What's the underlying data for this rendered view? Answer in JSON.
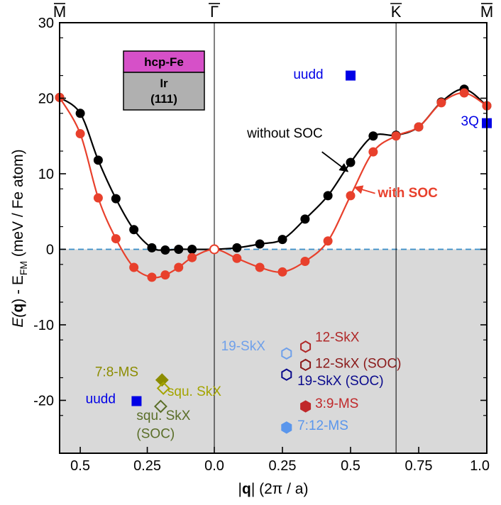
{
  "chart_data": {
    "type": "scatter",
    "ylabel_parts": [
      "E(",
      "q",
      ") - E",
      "FM",
      " (meV / Fe atom)"
    ],
    "xlabel_parts": [
      "|",
      "q",
      "| (2π / a)"
    ],
    "ylim": [
      -27,
      30
    ],
    "yticks": [
      -20,
      -10,
      0,
      10,
      20,
      30
    ],
    "ytick_labels": [
      "-20",
      "-10",
      "0",
      "10",
      "20",
      "30"
    ],
    "x_left_ticks": [
      0.5,
      0.25,
      0.0
    ],
    "x_left_tick_labels": [
      "0.5",
      "0.25",
      "0.0"
    ],
    "x_right_ticks": [
      0.25,
      0.5,
      0.75,
      1.0
    ],
    "x_right_tick_labels": [
      "0.25",
      "0.5",
      "0.75",
      "1.0"
    ],
    "x_left_range": [
      0.577,
      0
    ],
    "x_right_range": [
      0,
      1.0
    ],
    "symmetry_points": [
      {
        "label": "M",
        "side": "left",
        "x": 0.577
      },
      {
        "label": "Γ",
        "side": "right",
        "x": 0
      },
      {
        "label": "K",
        "side": "right",
        "x": 0.667
      },
      {
        "label": "M",
        "side": "right",
        "x": 1.0
      }
    ],
    "series": [
      {
        "name": "without SOC",
        "color": "#000000",
        "left": {
          "x": [
            0.577,
            0.5,
            0.433,
            0.367,
            0.3,
            0.233,
            0.183,
            0.133,
            0.083,
            0.0
          ],
          "y": [
            20.1,
            18.0,
            11.8,
            6.7,
            2.6,
            0.2,
            -0.1,
            0.0,
            0.0,
            0.0
          ]
        },
        "right": {
          "x": [
            0.0,
            0.083,
            0.167,
            0.25,
            0.333,
            0.417,
            0.5,
            0.583,
            0.667,
            0.75,
            0.833,
            0.917,
            1.0
          ],
          "y": [
            0.0,
            0.2,
            0.7,
            1.3,
            4.0,
            7.1,
            11.5,
            15.0,
            15.1,
            16.2,
            19.5,
            21.2,
            19.0
          ]
        }
      },
      {
        "name": "with SOC",
        "color": "#e8402c",
        "left": {
          "x": [
            0.577,
            0.5,
            0.433,
            0.367,
            0.3,
            0.233,
            0.183,
            0.133,
            0.083,
            0.0
          ],
          "y": [
            20.1,
            15.3,
            6.8,
            1.4,
            -2.4,
            -3.7,
            -3.4,
            -2.4,
            -1.1,
            0.0
          ]
        },
        "right": {
          "x": [
            0.0,
            0.083,
            0.167,
            0.25,
            0.333,
            0.417,
            0.5,
            0.583,
            0.667,
            0.75,
            0.833,
            0.917,
            1.0
          ],
          "y": [
            0.0,
            -1.2,
            -2.4,
            -3.0,
            -1.6,
            1.1,
            7.1,
            12.9,
            15.0,
            16.2,
            19.4,
            20.7,
            19.0
          ]
        }
      }
    ],
    "annotations": [
      {
        "id": "without-soc",
        "text": "without SOC",
        "color": "#000000",
        "bold": false,
        "side": "right",
        "x": 0.12,
        "y": 14.8
      },
      {
        "id": "with-soc",
        "text": "with SOC",
        "color": "#e8402c",
        "bold": true,
        "side": "right",
        "x": 0.6,
        "y": 6.9
      }
    ],
    "arrows": [
      {
        "id": "arrow-without-soc",
        "color": "#000000",
        "side": "right",
        "from": [
          0.395,
          12.9
        ],
        "to": [
          0.49,
          10.3
        ]
      },
      {
        "id": "arrow-with-soc",
        "color": "#e8402c",
        "side": "right",
        "from": [
          0.59,
          7.4
        ],
        "to": [
          0.515,
          8.2
        ]
      }
    ],
    "special_states": [
      {
        "id": "uudd-top",
        "label": "uudd",
        "color": "#0000e6",
        "marker": "square",
        "side": "right",
        "x": 0.5,
        "y": 23.0,
        "label_x": 0.29,
        "label_y": 22.6
      },
      {
        "id": "3q",
        "label": "3Q",
        "color": "#0000e6",
        "marker": "square",
        "side": "right",
        "x": 1.0,
        "y": 16.7,
        "label_x": 0.905,
        "label_y": 16.4
      },
      {
        "id": "uudd-bottom",
        "label": "uudd",
        "color": "#0000e6",
        "marker": "square",
        "side": "left",
        "x": 0.29,
        "y": -20.1,
        "label_x": 0.48,
        "label_y": -20.4
      },
      {
        "id": "7-8-ms",
        "label": "7:8-MS",
        "color": "#8c8c00",
        "marker": "diamond-filled",
        "side": "left",
        "x": 0.195,
        "y": -17.3,
        "label_x": 0.445,
        "label_y": -16.8
      },
      {
        "id": "squ-skx",
        "label": "squ. SkX",
        "color": "#a4a400",
        "marker": "diamond-open",
        "side": "left",
        "x": 0.19,
        "y": -18.4,
        "label_x": 0.175,
        "label_y": -19.4
      },
      {
        "id": "squ-skx-soc",
        "label": "squ. SkX",
        "label2": "(SOC)",
        "color": "#5a6e28",
        "marker": "diamond-open",
        "side": "left",
        "x": 0.2,
        "y": -20.8,
        "label_x": 0.29,
        "label_y": -22.6,
        "label2_y": -25.0
      },
      {
        "id": "19-skx",
        "label": "19-SkX",
        "color": "#6fa0ea",
        "marker": "hexagon-open",
        "side": "right",
        "x": 0.265,
        "y": -13.8,
        "label_x": 0.025,
        "label_y": -13.4
      },
      {
        "id": "12-skx",
        "label": "12-SkX",
        "color": "#b02828",
        "marker": "hexagon-open",
        "side": "right",
        "x": 0.335,
        "y": -12.9,
        "label_x": 0.37,
        "label_y": -12.2
      },
      {
        "id": "12-skx-soc",
        "label": "12-SkX (SOC)",
        "color": "#8b1a1a",
        "marker": "hexagon-open",
        "side": "right",
        "x": 0.335,
        "y": -15.3,
        "label_x": 0.37,
        "label_y": -15.7
      },
      {
        "id": "19-skx-soc",
        "label": "19-SkX (SOC)",
        "color": "#0a0a8c",
        "marker": "hexagon-open",
        "side": "right",
        "x": 0.265,
        "y": -16.6,
        "label_x": 0.305,
        "label_y": -18.0
      },
      {
        "id": "3-9-ms",
        "label": "3:9-MS",
        "color": "#c0282a",
        "marker": "hexagon-filled",
        "side": "right",
        "x": 0.335,
        "y": -20.8,
        "label_x": 0.37,
        "label_y": -21.0
      },
      {
        "id": "7-12-ms",
        "label": "7:12-MS",
        "color": "#5a96ec",
        "marker": "hexagon-filled",
        "side": "right",
        "x": 0.265,
        "y": -23.6,
        "label_x": 0.305,
        "label_y": -23.9
      }
    ],
    "legend_box": {
      "top_label": "hcp-Fe",
      "top_color": "#d650c8",
      "bottom_lines": [
        "Ir",
        "(111)"
      ],
      "bottom_color": "#b0b0b0",
      "placement": "top-left"
    },
    "shaded_region": {
      "from_y": -27,
      "to_y": 0,
      "color": "#d9d9d9"
    },
    "zero_line_color": "#3a8ec8"
  }
}
